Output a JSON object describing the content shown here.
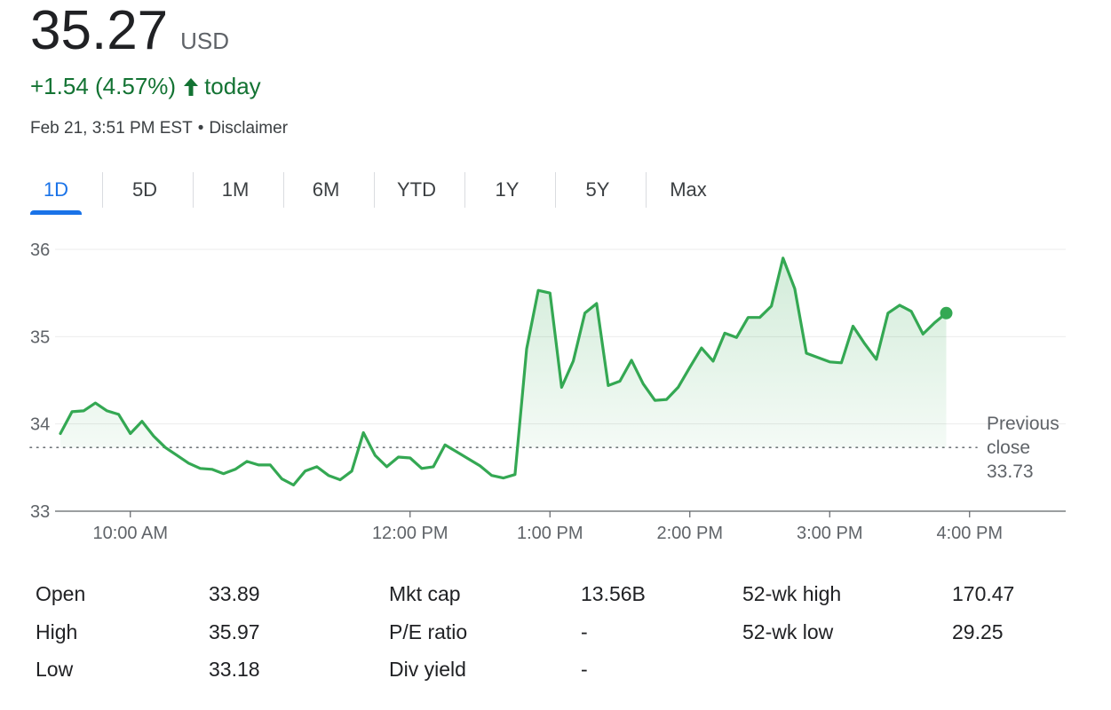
{
  "quote": {
    "price": "35.27",
    "currency": "USD",
    "change": "+1.54 (4.57%)",
    "change_suffix": "today",
    "timestamp": "Feb 21, 3:51 PM EST",
    "separator": "•",
    "disclaimer": "Disclaimer"
  },
  "colors": {
    "up": "#137333",
    "line": "#34a853",
    "tab_active": "#1a73e8"
  },
  "tabs": [
    {
      "label": "1D",
      "active": true
    },
    {
      "label": "5D",
      "active": false
    },
    {
      "label": "1M",
      "active": false
    },
    {
      "label": "6M",
      "active": false
    },
    {
      "label": "YTD",
      "active": false
    },
    {
      "label": "1Y",
      "active": false
    },
    {
      "label": "5Y",
      "active": false
    },
    {
      "label": "Max",
      "active": false
    }
  ],
  "chart_data": {
    "type": "area",
    "title": "",
    "xlabel": "",
    "ylabel": "",
    "ylim": [
      33,
      36
    ],
    "y_ticks": [
      "33",
      "34",
      "35",
      "36"
    ],
    "x_ticks": [
      "10:00 AM",
      "12:00 PM",
      "1:00 PM",
      "2:00 PM",
      "3:00 PM",
      "4:00 PM"
    ],
    "x_range": [
      "9:30 AM",
      "4:30 PM"
    ],
    "grid": true,
    "previous_close": {
      "label_line1": "Previous",
      "label_line2": "close",
      "value": 33.73,
      "value_text": "33.73"
    },
    "series": [
      {
        "x": [
          "9:30",
          "9:35",
          "9:40",
          "9:45",
          "9:50",
          "9:55",
          "10:00",
          "10:05",
          "10:10",
          "10:15",
          "10:20",
          "10:25",
          "10:30",
          "10:35",
          "10:40",
          "10:45",
          "10:50",
          "10:55",
          "11:00",
          "11:05",
          "11:10",
          "11:15",
          "11:20",
          "11:25",
          "11:30",
          "11:35",
          "11:40",
          "11:45",
          "11:50",
          "11:55",
          "12:00",
          "12:05",
          "12:10",
          "12:15",
          "12:20",
          "12:25",
          "12:30",
          "12:35",
          "12:40",
          "12:45",
          "12:50",
          "12:55",
          "13:00",
          "13:05",
          "13:10",
          "13:15",
          "13:20",
          "13:25",
          "13:30",
          "13:35",
          "13:40",
          "13:45",
          "13:50",
          "13:55",
          "14:00",
          "14:05",
          "14:10",
          "14:15",
          "14:20",
          "14:25",
          "14:30",
          "14:35",
          "14:40",
          "14:45",
          "14:50",
          "14:55",
          "15:00",
          "15:05",
          "15:10",
          "15:15",
          "15:20",
          "15:25",
          "15:30",
          "15:35",
          "15:40",
          "15:45",
          "15:50"
        ],
        "values": [
          33.89,
          34.14,
          34.15,
          34.24,
          34.15,
          34.11,
          33.89,
          34.03,
          33.86,
          33.73,
          33.64,
          33.55,
          33.49,
          33.48,
          33.43,
          33.48,
          33.57,
          33.53,
          33.53,
          33.37,
          33.3,
          33.46,
          33.51,
          33.41,
          33.36,
          33.46,
          33.9,
          33.64,
          33.51,
          33.62,
          33.61,
          33.49,
          33.51,
          33.76,
          33.68,
          33.6,
          33.52,
          33.41,
          33.38,
          33.42,
          34.86,
          35.53,
          35.5,
          34.42,
          34.72,
          35.27,
          35.38,
          34.44,
          34.49,
          34.73,
          34.46,
          34.27,
          34.28,
          34.42,
          34.65,
          34.87,
          34.72,
          35.04,
          34.99,
          35.22,
          35.22,
          35.35,
          35.9,
          35.55,
          34.81,
          34.76,
          34.71,
          34.7,
          35.12,
          34.92,
          34.74,
          35.27,
          35.36,
          35.29,
          35.03,
          35.16,
          35.27
        ]
      }
    ]
  },
  "stats": [
    {
      "label": "Open",
      "value": "33.89"
    },
    {
      "label": "High",
      "value": "35.97"
    },
    {
      "label": "Low",
      "value": "33.18"
    },
    {
      "label": "Mkt cap",
      "value": "13.56B"
    },
    {
      "label": "P/E ratio",
      "value": "-"
    },
    {
      "label": "Div yield",
      "value": "-"
    },
    {
      "label": "52-wk high",
      "value": "170.47"
    },
    {
      "label": "52-wk low",
      "value": "29.25"
    }
  ]
}
